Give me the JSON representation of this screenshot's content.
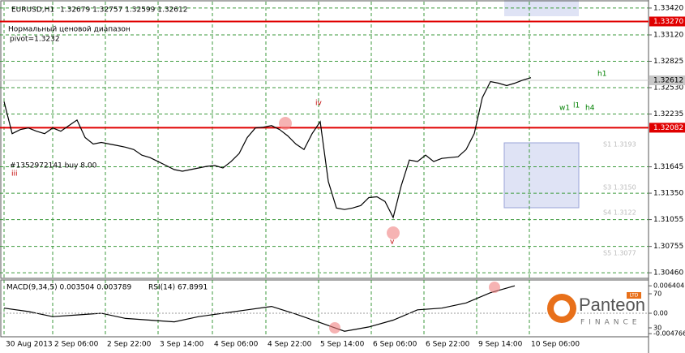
{
  "chart_data": [
    {
      "type": "line",
      "title": "EURUSD,H1",
      "quote": "1.32679 1.32757 1.32599 1.32612",
      "x": [
        0,
        1,
        2,
        3,
        4,
        5,
        6,
        7,
        8,
        9,
        10,
        11,
        12,
        13,
        14,
        15,
        16,
        17,
        18,
        19,
        20,
        21,
        22,
        23,
        24,
        25,
        26,
        27,
        28,
        29,
        30,
        31,
        32,
        33,
        34,
        35,
        36,
        37,
        38,
        39,
        40,
        41,
        42,
        43,
        44,
        45,
        46,
        47,
        48,
        49,
        50,
        51,
        52,
        53,
        54,
        55,
        56,
        57,
        58,
        59,
        60,
        61,
        62,
        63,
        64,
        65
      ],
      "series": [
        {
          "name": "EURUSD",
          "color": "#000000",
          "values": [
            1.32374,
            1.32016,
            1.32061,
            1.32079,
            1.32043,
            1.32016,
            1.32079,
            1.32043,
            1.32106,
            1.32168,
            1.31972,
            1.319,
            1.31918,
            1.319,
            1.31882,
            1.31864,
            1.31838,
            1.31775,
            1.31748,
            1.31704,
            1.31659,
            1.31614,
            1.31596,
            1.31614,
            1.31632,
            1.3165,
            1.31659,
            1.31632,
            1.31704,
            1.31793,
            1.31972,
            1.32079,
            1.32088,
            1.32106,
            1.32061,
            1.3199,
            1.319,
            1.31838,
            1.32016,
            1.3215,
            1.3148,
            1.31185,
            1.31167,
            1.31185,
            1.31212,
            1.31301,
            1.3131,
            1.31257,
            1.31078,
            1.31435,
            1.31721,
            1.31704,
            1.31775,
            1.31704,
            1.31739,
            1.31748,
            1.31757,
            1.31838,
            1.32016,
            1.32419,
            1.32598,
            1.3258,
            1.32553,
            1.3258,
            1.32615,
            1.32642
          ]
        }
      ],
      "xlim": [
        -0.5,
        79.5
      ],
      "xticks": [
        {
          "value": 0,
          "label": "30 Aug 2013"
        },
        {
          "value": 6,
          "label": "2 Sep 06:00"
        },
        {
          "value": 12.5,
          "label": "2 Sep 22:00"
        },
        {
          "value": 19,
          "label": "3 Sep 14:00"
        },
        {
          "value": 25.7,
          "label": "4 Sep 06:00"
        },
        {
          "value": 32.3,
          "label": "4 Sep 22:00"
        },
        {
          "value": 38.8,
          "label": "5 Sep 14:00"
        },
        {
          "value": 45.3,
          "label": "6 Sep 06:00"
        },
        {
          "value": 51.8,
          "label": "6 Sep 22:00"
        },
        {
          "value": 58.3,
          "label": "9 Sep 14:00"
        },
        {
          "value": 64.8,
          "label": "10 Sep 06:00"
        }
      ],
      "ylim": [
        1.30407,
        1.33492
      ],
      "yticks": [
        {
          "value": 1.3342,
          "label": "1.33420"
        },
        {
          "value": 1.3312,
          "label": "1.33120"
        },
        {
          "value": 1.32825,
          "label": "1.32825"
        },
        {
          "value": 1.3253,
          "label": "1.32530"
        },
        {
          "value": 1.32235,
          "label": "1.32235"
        },
        {
          "value": 1.31645,
          "label": "1.31645"
        },
        {
          "value": 1.3135,
          "label": "1.31350"
        },
        {
          "value": 1.31055,
          "label": "1.31055"
        },
        {
          "value": 1.30755,
          "label": "1.30755"
        },
        {
          "value": 1.3046,
          "label": "1.30460"
        }
      ],
      "grid": true,
      "levels": [
        {
          "value": 1.3327,
          "label": "1.33270",
          "color": "#e00000"
        },
        {
          "value": 1.32082,
          "label": "1.32082",
          "color": "#e00000"
        },
        {
          "value": 1.32612,
          "label": "1.32612",
          "color": "#c8c8c8"
        }
      ],
      "annotations": [
        "Нормальный ценовой диапазон",
        "pivot=1.3232",
        "#1352972141 buy 8.00",
        "iii",
        "iv",
        "v",
        "h1",
        "w1",
        "l1",
        "h4",
        "S1 1.3193",
        "S3 1.3150",
        "S4 1.3122",
        "S5 1.3077"
      ]
    },
    {
      "type": "line",
      "title": "MACD(9,34,5) 0.003504 0.003789",
      "subtitle": "RSI(14) 67.8991",
      "x": [
        0,
        3,
        6,
        9,
        12,
        15,
        18,
        21,
        24,
        27,
        30,
        33,
        36,
        39,
        42,
        45,
        48,
        51,
        54,
        57,
        60,
        63
      ],
      "series": [
        {
          "name": "MACD",
          "color": "#000000",
          "values": [
            0.0012,
            0.0004,
            -0.0008,
            -0.0004,
            0,
            -0.0012,
            -0.0016,
            -0.002,
            -0.0008,
            0,
            0.0008,
            0.0016,
            -0.0002,
            -0.0022,
            -0.0042,
            -0.0032,
            -0.0016,
            0.0008,
            0.0012,
            0.0024,
            0.0048,
            0.0064
          ]
        }
      ],
      "xlim": [
        -0.5,
        79.5
      ],
      "ylim": [
        -0.0053,
        0.0072
      ],
      "yticks": [
        {
          "value": 0.006404,
          "label": "0.006404"
        },
        {
          "value": 0,
          "label": "0.00"
        },
        {
          "value": -0.004766,
          "label": "-0.004766"
        }
      ],
      "y2ticks": [
        70,
        30
      ],
      "brand": "Panteon",
      "brand_sub": "FINANCE",
      "brand_tag": "LTD"
    }
  ]
}
